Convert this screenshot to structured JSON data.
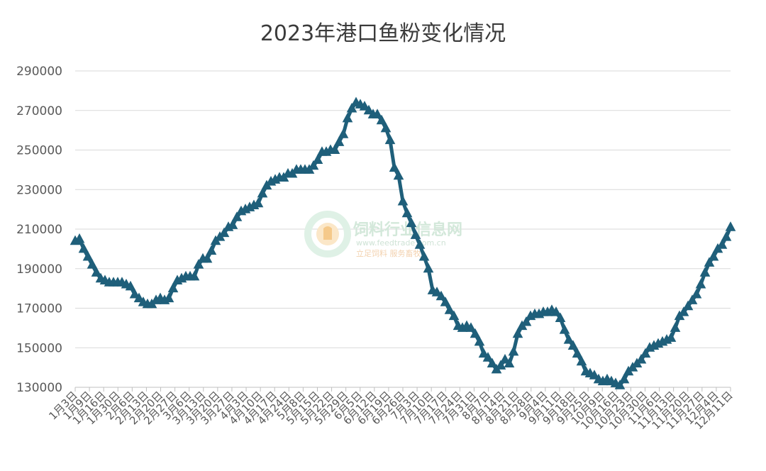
{
  "title": "2023年港口鱼粉变化情况",
  "watermark": {
    "name": "饲料行业信息网",
    "url": "www.feedtrade.com.cn",
    "slogan": "立足饲料  服务畜牧"
  },
  "chart_data": {
    "type": "line",
    "title": "2023年港口鱼粉变化情况",
    "xlabel": "",
    "ylabel": "",
    "ylim": [
      130000,
      290000
    ],
    "yticks": [
      130000,
      150000,
      170000,
      190000,
      210000,
      230000,
      250000,
      270000,
      290000
    ],
    "grid": true,
    "line_color": "#1f5f7a",
    "marker": "triangle",
    "x_tick_labels": [
      "1月3日",
      "1月9日",
      "1月16日",
      "1月30日",
      "2月6日",
      "2月13日",
      "2月20日",
      "2月27日",
      "3月6日",
      "3月13日",
      "3月20日",
      "3月27日",
      "4月3日",
      "4月10日",
      "4月17日",
      "4月24日",
      "5月8日",
      "5月15日",
      "5月22日",
      "5月29日",
      "6月5日",
      "6月12日",
      "6月19日",
      "6月26日",
      "7月3日",
      "7月10日",
      "7月17日",
      "7月24日",
      "7月31日",
      "8月7日",
      "8月14日",
      "8月21日",
      "8月28日",
      "9月4日",
      "9月11日",
      "9月18日",
      "9月25日",
      "10月9日",
      "10月16日",
      "10月23日",
      "10月30日",
      "11月6日",
      "11月13日",
      "11月20日",
      "11月27日",
      "12月4日",
      "12月11日"
    ],
    "series": [
      {
        "values": [
          204000,
          205000,
          200000,
          196000,
          192000,
          188000,
          185000,
          184000,
          183000,
          183000,
          183000,
          183000,
          182000,
          181000,
          177000,
          175000,
          173000,
          172000,
          172000,
          174000,
          175000,
          174000,
          175000,
          180000,
          184000,
          185000,
          186000,
          186000,
          186000,
          192000,
          195000,
          195000,
          199000,
          204000,
          206000,
          208000,
          211000,
          212000,
          216000,
          219000,
          220000,
          221000,
          222000,
          223000,
          228000,
          232000,
          234000,
          235000,
          236000,
          236000,
          238000,
          238000,
          240000,
          240000,
          240000,
          240000,
          242000,
          245000,
          249000,
          249000,
          250000,
          250000,
          254000,
          258000,
          266000,
          271000,
          274000,
          273000,
          272000,
          270000,
          268000,
          268000,
          265000,
          261000,
          255000,
          241000,
          237000,
          224000,
          218000,
          213000,
          207000,
          202000,
          196000,
          190000,
          179000,
          178000,
          176000,
          173000,
          169000,
          166000,
          161000,
          160000,
          161000,
          160000,
          157000,
          153000,
          147000,
          145000,
          142000,
          139000,
          141000,
          144000,
          142000,
          148000,
          157000,
          161000,
          163000,
          166000,
          167000,
          167000,
          168000,
          168000,
          169000,
          168000,
          165000,
          159000,
          154000,
          151000,
          147000,
          143000,
          138000,
          137000,
          136000,
          134000,
          133000,
          134000,
          133000,
          132000,
          131000,
          134000,
          138000,
          140000,
          142000,
          144000,
          147000,
          150000,
          151000,
          152000,
          153000,
          154000,
          155000,
          160000,
          166000,
          168000,
          171000,
          174000,
          177000,
          182000,
          188000,
          193000,
          196000,
          200000,
          202000,
          206000,
          211000
        ]
      }
    ]
  }
}
